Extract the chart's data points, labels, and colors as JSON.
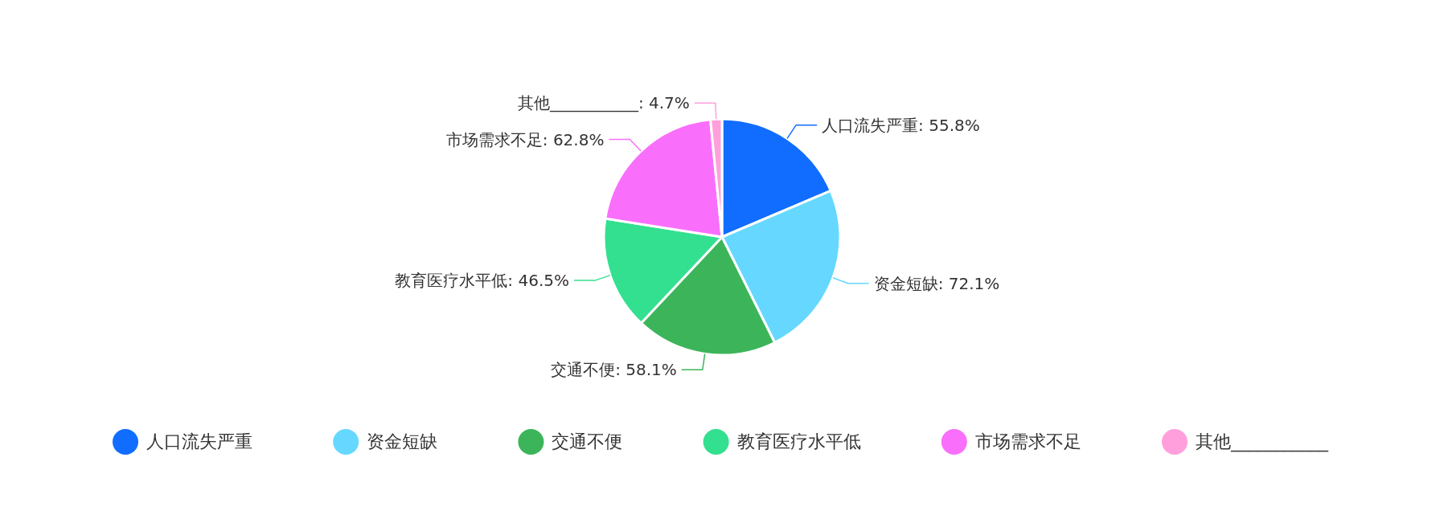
{
  "chart_data": {
    "type": "pie",
    "categories": [
      "人口流失严重",
      "资金短缺",
      "交通不便",
      "教育医疗水平低",
      "市场需求不足",
      "其他___________"
    ],
    "values": [
      55.8,
      72.1,
      58.1,
      46.5,
      62.8,
      4.7
    ],
    "colors": [
      "#116dff",
      "#66d8ff",
      "#3cb55a",
      "#33e08f",
      "#f96ffc",
      "#ffa0dc"
    ],
    "value_labels": [
      ": 55.8%",
      ": 72.1%",
      ": 58.1%",
      ": 46.5%",
      ": 62.8%",
      ": 4.7%"
    ],
    "legend": "bottom"
  }
}
